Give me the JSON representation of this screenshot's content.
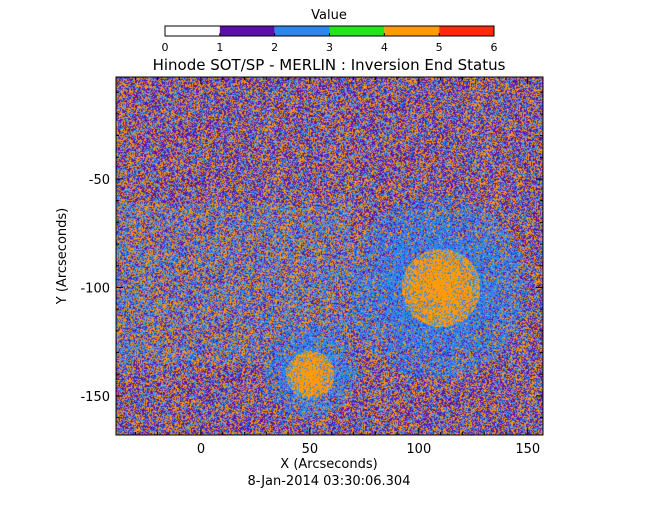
{
  "chart_data": {
    "type": "heatmap",
    "title": "Hinode SOT/SP - MERLIN : Inversion End Status",
    "xlabel": "X (Arcseconds)",
    "ylabel": "Y (Arcseconds)",
    "timestamp": "8-Jan-2014 03:30:06.304",
    "xlim": [
      -39,
      157
    ],
    "ylim": [
      -168,
      -3
    ],
    "x_ticks": [
      0,
      50,
      100,
      150
    ],
    "x_tick_labels": [
      "0",
      "50",
      "100",
      "150"
    ],
    "y_ticks": [
      -50,
      -100,
      -150
    ],
    "y_tick_labels": [
      "-50",
      "-100",
      "-150"
    ],
    "colorbar": {
      "label": "Value",
      "range": [
        0,
        6
      ],
      "ticks": [
        0,
        1,
        2,
        3,
        4,
        5,
        6
      ],
      "tick_labels": [
        "0",
        "1",
        "2",
        "3",
        "4",
        "5",
        "6"
      ],
      "bins": [
        {
          "from": 0,
          "to": 1,
          "color": "#ffffff"
        },
        {
          "from": 1,
          "to": 2,
          "color": "#5a10a8"
        },
        {
          "from": 2,
          "to": 3,
          "color": "#2c86ee"
        },
        {
          "from": 3,
          "to": 4,
          "color": "#22e61a"
        },
        {
          "from": 4,
          "to": 5,
          "color": "#ff9a0a"
        },
        {
          "from": 5,
          "to": 6,
          "color": "#ff2a0a"
        }
      ]
    },
    "dominant_values": [
      {
        "value": 1,
        "color": "#5a10a8"
      },
      {
        "value": 2,
        "color": "#2c86ee"
      },
      {
        "value": 4,
        "color": "#ff9a0a"
      }
    ],
    "regions": [
      {
        "type": "large_orange_core",
        "center_x": 110,
        "center_y": -100,
        "radius": 18
      },
      {
        "type": "orange_core",
        "center_x": 50,
        "center_y": -140,
        "radius": 11
      },
      {
        "type": "blue_umbral_field",
        "center_x": 108,
        "center_y": -100,
        "radius": 42
      },
      {
        "type": "blue_umbral_field",
        "center_x": 50,
        "center_y": -138,
        "radius": 22
      }
    ]
  }
}
